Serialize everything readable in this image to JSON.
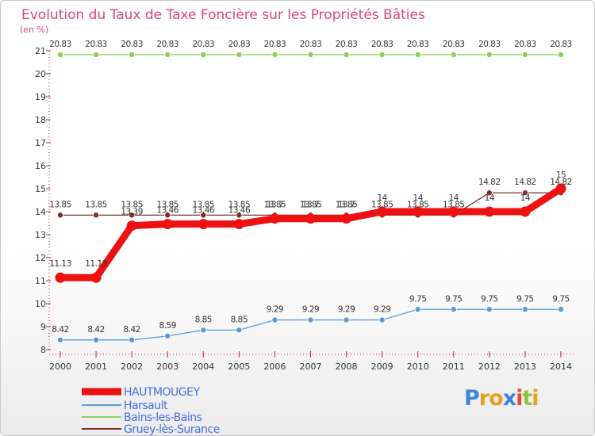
{
  "chart_data": {
    "type": "line",
    "title": "Evolution du Taux de Taxe Foncière sur les Propriétés Bâties",
    "ylabel": "(en %)",
    "ylim": [
      8,
      21
    ],
    "yticks": [
      8,
      9,
      10,
      11,
      12,
      13,
      14,
      15,
      16,
      17,
      18,
      19,
      20,
      21
    ],
    "x": [
      2000,
      2001,
      2002,
      2003,
      2004,
      2005,
      2006,
      2007,
      2008,
      2009,
      2010,
      2011,
      2012,
      2013,
      2014
    ],
    "series": [
      {
        "name": "Bains-les-Bains",
        "color": "#8cd05a",
        "values": [
          20.83,
          20.83,
          20.83,
          20.83,
          20.83,
          20.83,
          20.83,
          20.83,
          20.83,
          20.83,
          20.83,
          20.83,
          20.83,
          20.83,
          20.83
        ]
      },
      {
        "name": "Gruey-lès-Surance",
        "color": "#7a2e2e",
        "values": [
          13.85,
          13.85,
          13.85,
          13.85,
          13.85,
          13.85,
          13.85,
          13.85,
          13.85,
          13.85,
          13.85,
          13.85,
          14.82,
          14.82,
          14.82
        ]
      },
      {
        "name": "HAUTMOUGEY",
        "color": "#ee1111",
        "values": [
          11.13,
          11.13,
          13.39,
          13.46,
          13.46,
          13.46,
          13.7,
          13.7,
          13.7,
          14,
          14,
          14,
          14,
          14,
          15
        ]
      },
      {
        "name": "Harsault",
        "color": "#5b9bd5",
        "values": [
          8.42,
          8.42,
          8.42,
          8.59,
          8.85,
          8.85,
          9.29,
          9.29,
          9.29,
          9.29,
          9.75,
          9.75,
          9.75,
          9.75,
          9.75
        ]
      }
    ],
    "legend": [
      {
        "name": "HAUTMOUGEY",
        "color": "#ee1111"
      },
      {
        "name": "Harsault",
        "color": "#5b9bd5"
      },
      {
        "name": "Bains-les-Bains",
        "color": "#8cd05a"
      },
      {
        "name": "Gruey-lès-Surance",
        "color": "#7a2e2e"
      }
    ],
    "legend_position": "bottom-left"
  },
  "logo": {
    "letters": [
      "P",
      "r",
      "o",
      "x",
      "i",
      "t",
      "i"
    ],
    "colors": [
      "#3a86d8",
      "#e8a020",
      "#e8a020",
      "#3a86d8",
      "#e84a2a",
      "#8cc63f",
      "#e8a020"
    ]
  }
}
